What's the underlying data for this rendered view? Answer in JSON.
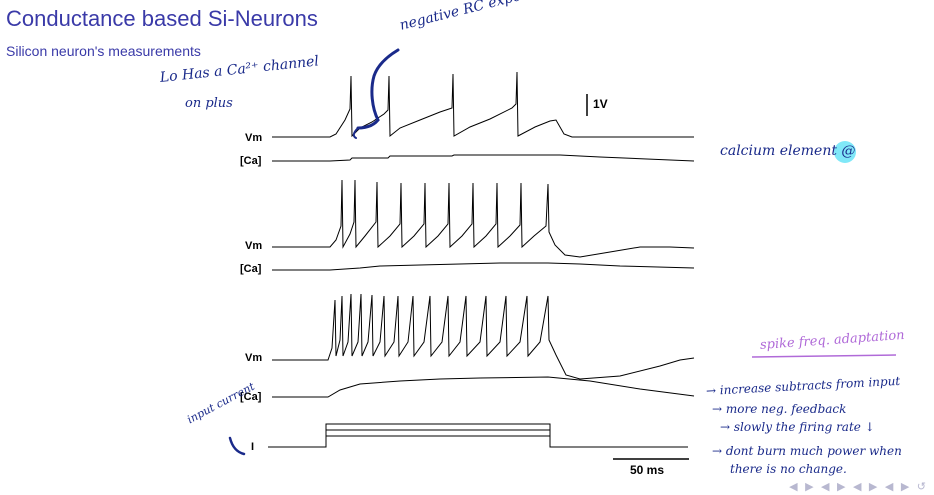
{
  "slide": {
    "title": "Conductance based Si-Neurons",
    "subtitle": "Silicon neuron's measurements"
  },
  "figure": {
    "labels": {
      "vm": "Vm",
      "ca": "[Ca]",
      "current": "I"
    },
    "scale": {
      "voltage": "1V",
      "time": "50 ms"
    },
    "panels": [
      {
        "spike_count": 5
      },
      {
        "spike_count": 8
      },
      {
        "spike_count": 12
      }
    ]
  },
  "annotations": {
    "rc_rise": "negative RC exponent rise",
    "ca_channel_1": "Lo Has a Ca²⁺ channel",
    "ca_channel_2": "on plus",
    "calcium_element": "calcium element @",
    "input_current": "input current",
    "adaptation_title": "spike freq. adaptation",
    "adaptation_notes": [
      "→ increase subtracts from input",
      "→ more neg. feedback",
      "→ slowly the firing rate ↓",
      "→ dont burn much power when",
      "there is no change."
    ]
  },
  "colors": {
    "title": "#3a3aa8",
    "ink_blue": "#1a2a8a",
    "ink_purple": "#b06ad8",
    "marker_cyan": "#80e8f8"
  },
  "nav_icons": "beamer-navigation-icons"
}
